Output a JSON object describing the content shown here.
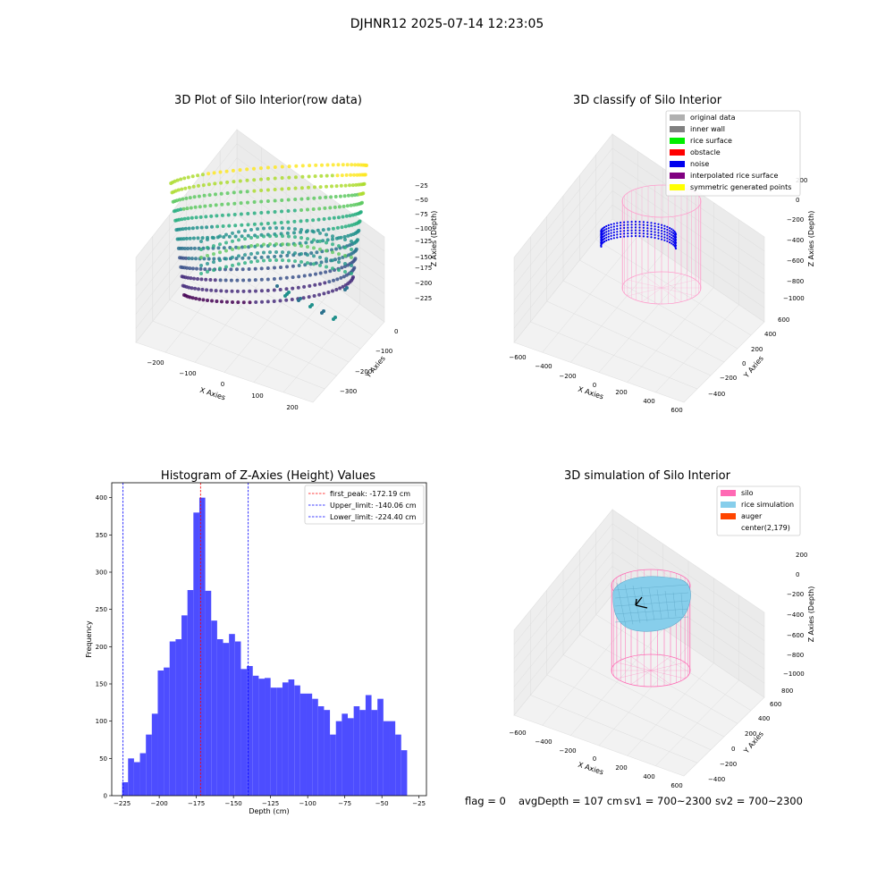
{
  "suptitle": "DJHNR12 2025-07-14 12:23:05",
  "footer": {
    "flag": "flag = 0",
    "avg_depth": "avgDepth = 107 cm",
    "sv1": "sv1 = 700~2300",
    "sv2": "sv2 = 700~2300"
  },
  "colors": {
    "original": "#b0b0b0",
    "inner_wall": "#808080",
    "rice_surface": "#00ee00",
    "obstacle": "#ff0000",
    "noise": "#0000ee",
    "interp": "#800080",
    "sym": "#ffff00",
    "silo": "#ff69b4",
    "rice_sim": "#87ceeb",
    "auger": "#ff4500",
    "hist": "#4d4dff"
  },
  "chart_data": [
    {
      "type": "scatter3d",
      "title": "3D Plot of Silo Interior(row data)",
      "xlabel": "X Axies",
      "ylabel": "Y Axies",
      "zlabel": "Z Axies (Depth)",
      "xticks": [
        "−200",
        "−100",
        "0",
        "100",
        "200"
      ],
      "yticks": [
        "−300",
        "−200",
        "−100",
        "0"
      ],
      "zticks": [
        "−225",
        "−200",
        "−175",
        "−150",
        "−125",
        "−100",
        "−75",
        "−50",
        "−25"
      ],
      "xlim": [
        -250,
        250
      ],
      "ylim": [
        -350,
        80
      ],
      "zlim": [
        -240,
        -15
      ],
      "colormap": "viridis"
    },
    {
      "type": "scatter3d",
      "title": "3D classify of Silo Interior",
      "xlabel": "X Axies",
      "ylabel": "Y Axies",
      "zlabel": "Z Axies (Depth)",
      "xticks": [
        "−600",
        "−400",
        "−200",
        "0",
        "200",
        "400",
        "600"
      ],
      "yticks": [
        "−400",
        "−200",
        "0",
        "200",
        "400",
        "600"
      ],
      "zticks": [
        "−1000",
        "−800",
        "−600",
        "−400",
        "−200",
        "0",
        "200"
      ],
      "xlim": [
        -700,
        700
      ],
      "ylim": [
        -500,
        700
      ],
      "zlim": [
        -1100,
        250
      ],
      "legend": [
        "original data",
        "inner wall",
        "rice surface",
        "obstacle",
        "noise",
        "interpolated rice surface",
        "symmetric generated points"
      ]
    },
    {
      "type": "histogram",
      "title": "Histogram of Z-Axies (Height) Values",
      "xlabel": "Depth (cm)",
      "ylabel": "Frequency",
      "xlim": [
        -232,
        -20
      ],
      "ylim": [
        0,
        420
      ],
      "xticks": [
        -225,
        -200,
        -175,
        -150,
        -125,
        -100,
        -75,
        -50,
        -25
      ],
      "xtick_labels": [
        "−225",
        "−200",
        "−175",
        "−150",
        "−125",
        "−100",
        "−75",
        "−50",
        "−25"
      ],
      "yticks": [
        0,
        50,
        100,
        150,
        200,
        250,
        300,
        350,
        400
      ],
      "bin_start": -225,
      "bin_width": 4,
      "values": [
        18,
        50,
        45,
        57,
        82,
        110,
        168,
        172,
        207,
        210,
        242,
        276,
        380,
        400,
        275,
        235,
        210,
        205,
        217,
        207,
        170,
        174,
        161,
        157,
        158,
        145,
        145,
        152,
        156,
        148,
        137,
        137,
        130,
        120,
        115,
        82,
        100,
        110,
        104,
        120,
        115,
        135,
        115,
        130,
        100,
        100,
        82,
        61
      ],
      "vlines": [
        {
          "x": -172.19,
          "label": "first_peak: -172.19 cm",
          "color": "#ff0000"
        },
        {
          "x": -140.06,
          "label": "Upper_limit: -140.06 cm",
          "color": "#0000ff"
        },
        {
          "x": -224.4,
          "label": "Lower_limit: -224.40 cm",
          "color": "#0000ff"
        }
      ]
    },
    {
      "type": "surface3d",
      "title": "3D simulation of Silo Interior",
      "xlabel": "X Axies",
      "ylabel": "Y Axies",
      "zlabel": "Z Axies (Depth)",
      "xticks": [
        "−600",
        "−400",
        "−200",
        "0",
        "200",
        "400",
        "600"
      ],
      "yticks": [
        "−400",
        "−200",
        "0",
        "200",
        "400",
        "600",
        "800"
      ],
      "zticks": [
        "−1000",
        "−800",
        "−600",
        "−400",
        "−200",
        "0",
        "200"
      ],
      "xlim": [
        -700,
        700
      ],
      "ylim": [
        -500,
        900
      ],
      "zlim": [
        -1100,
        250
      ],
      "legend": [
        "silo",
        "rice simulation",
        "auger",
        "center(2,179)"
      ]
    }
  ]
}
